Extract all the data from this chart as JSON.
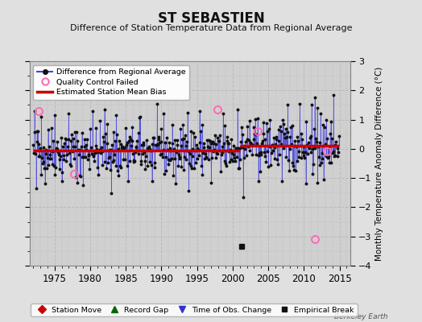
{
  "title": "ST SEBASTIEN",
  "subtitle": "Difference of Station Temperature Data from Regional Average",
  "ylabel_right": "Monthly Temperature Anomaly Difference (°C)",
  "xlim": [
    1971.5,
    2016.5
  ],
  "ylim": [
    -4,
    3
  ],
  "yticks": [
    -4,
    -3,
    -2,
    -1,
    0,
    1,
    2,
    3
  ],
  "xticks": [
    1975,
    1980,
    1985,
    1990,
    1995,
    2000,
    2005,
    2010,
    2015
  ],
  "background_color": "#e0e0e0",
  "plot_bg_color": "#d0d0d0",
  "bias_before": -0.07,
  "bias_after": 0.12,
  "break_year": 2001.0,
  "empirical_break_x": 2001.25,
  "empirical_break_y": -3.35,
  "qc_failed_points": [
    [
      1972.75,
      1.3
    ],
    [
      1977.75,
      -0.85
    ],
    [
      1997.83,
      1.35
    ],
    [
      2003.5,
      0.6
    ],
    [
      2011.5,
      -3.1
    ],
    [
      2013.25,
      -0.1
    ]
  ],
  "seed": 42,
  "line_color": "#4444dd",
  "marker_color": "#111111",
  "bias_color": "#cc0000",
  "qc_color": "#ff69b4",
  "grid_color": "#bbbbbb",
  "watermark": "Berkeley Earth",
  "n_months_start": 1972,
  "n_months_end": 2015
}
